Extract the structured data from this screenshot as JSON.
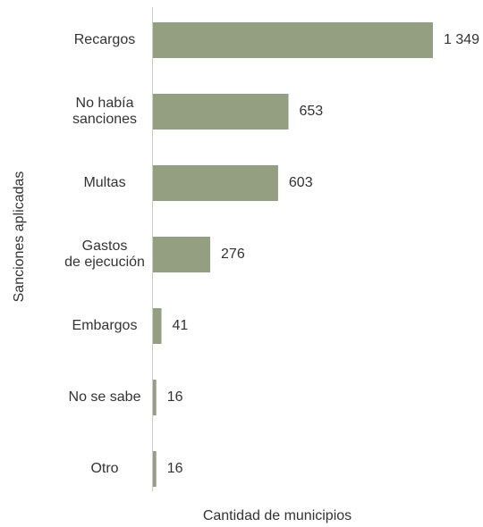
{
  "chart_data": {
    "type": "bar",
    "orientation": "horizontal",
    "categories": [
      "Recargos",
      "No había\nsanciones",
      "Multas",
      "Gastos\nde ejecución",
      "Embargos",
      "No se sabe",
      "Otro"
    ],
    "values": [
      1349,
      653,
      603,
      276,
      41,
      16,
      16
    ],
    "value_labels": [
      "1 349",
      "653",
      "603",
      "276",
      "41",
      "16",
      "16"
    ],
    "color": "#949e80",
    "xlabel": "Cantidad de municipios",
    "ylabel": "Sanciones aplicadas"
  }
}
